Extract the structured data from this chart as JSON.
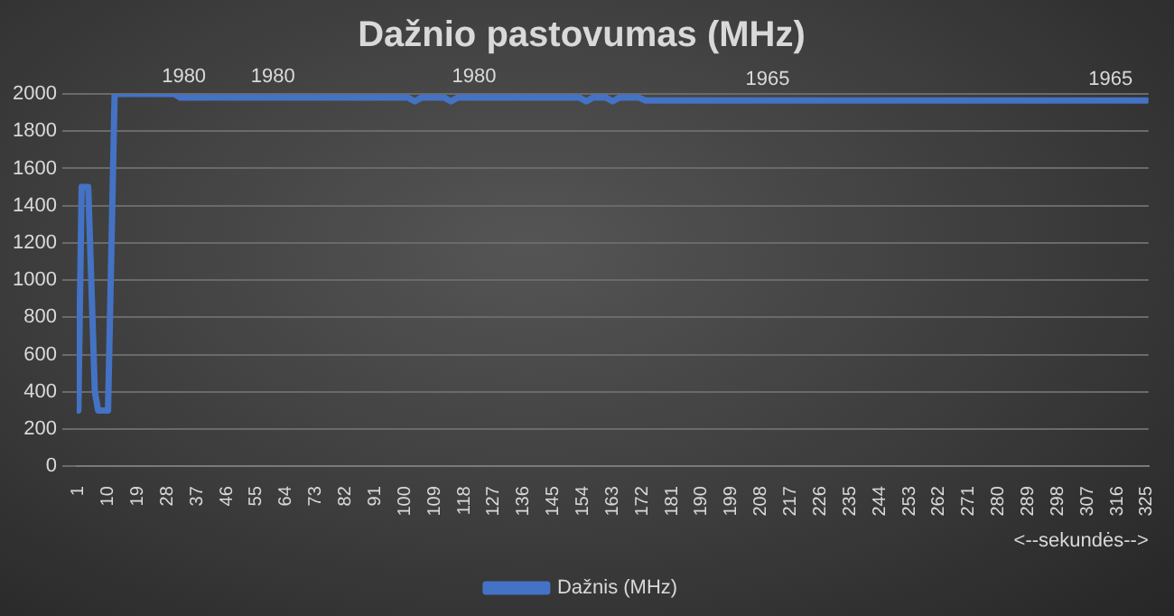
{
  "chart_data": {
    "type": "line",
    "title": "Dažnio pastovumas (MHz)",
    "xlabel": "<--sekundės-->",
    "x": [
      1,
      2,
      4,
      6,
      7,
      10,
      12,
      30,
      32,
      101,
      103,
      105,
      112,
      114,
      116,
      153,
      155,
      157,
      161,
      163,
      165,
      171,
      173,
      325
    ],
    "series": [
      {
        "name": "Dažnis (MHz)",
        "color": "#4472c4",
        "values": [
          300,
          1500,
          1500,
          400,
          300,
          300,
          2000,
          2000,
          1980,
          1980,
          1960,
          1980,
          1980,
          1960,
          1980,
          1980,
          1960,
          1980,
          1980,
          1960,
          1980,
          1980,
          1965,
          1965
        ]
      }
    ],
    "xlim": [
      0.5,
      325.5
    ],
    "xticks": [
      1,
      10,
      19,
      28,
      37,
      46,
      55,
      64,
      73,
      82,
      91,
      100,
      109,
      118,
      127,
      136,
      145,
      154,
      163,
      172,
      181,
      190,
      199,
      208,
      217,
      226,
      235,
      244,
      253,
      262,
      271,
      280,
      289,
      298,
      307,
      316,
      325
    ],
    "ylim": [
      0,
      2000
    ],
    "yticks": [
      0,
      200,
      400,
      600,
      800,
      1000,
      1200,
      1400,
      1600,
      1800,
      2000
    ],
    "grid": "y",
    "legend": "bottom",
    "marker": "none",
    "line_style": "solid",
    "annotations": [
      {
        "text": "1980",
        "x": 33,
        "y": 1980
      },
      {
        "text": "1980",
        "x": 60,
        "y": 1980
      },
      {
        "text": "1980",
        "x": 121,
        "y": 1980
      },
      {
        "text": "1965",
        "x": 210,
        "y": 1965
      },
      {
        "text": "1965",
        "x": 314,
        "y": 1965
      }
    ]
  }
}
